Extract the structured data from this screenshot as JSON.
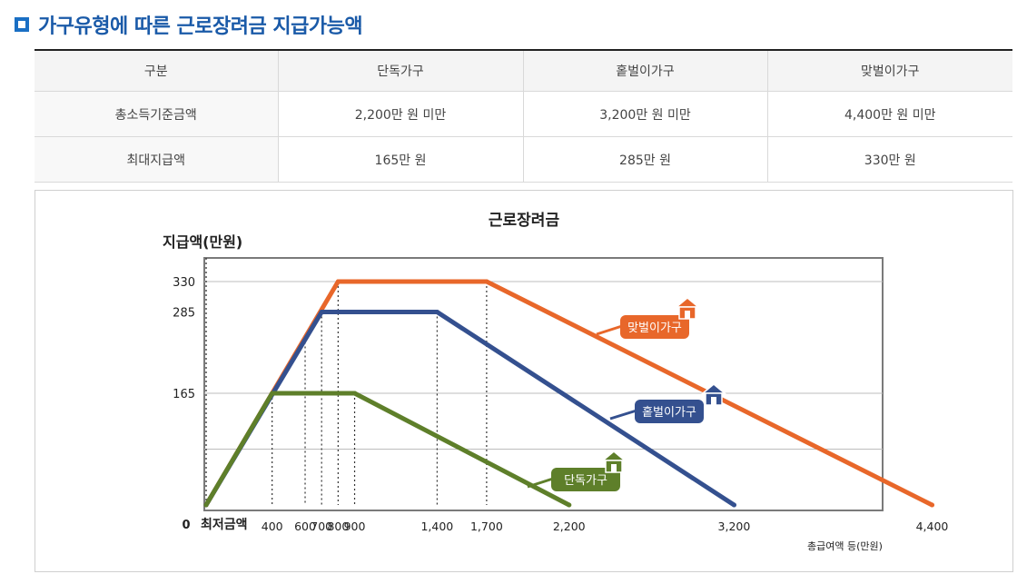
{
  "header": {
    "title": "가구유형에 따른 근로장려금 지급가능액"
  },
  "table": {
    "columns": [
      "구분",
      "단독가구",
      "홑벌이가구",
      "맞벌이가구"
    ],
    "rows": [
      [
        "총소득기준금액",
        "2,200만 원 미만",
        "3,200만 원 미만",
        "4,400만 원 미만"
      ],
      [
        "최대지급액",
        "165만 원",
        "285만 원",
        "330만 원"
      ]
    ]
  },
  "chart_data": {
    "type": "line",
    "title": "근로장려금",
    "ylabel": "지급액(만원)",
    "xlabel": "총급여액 등(만원)",
    "origin_label": "0",
    "min_label": "최저금액",
    "xlim": [
      0,
      4400
    ],
    "ylim": [
      0,
      330
    ],
    "x_ticks": [
      400,
      600,
      700,
      800,
      900,
      1400,
      1700,
      2200,
      3200,
      4400
    ],
    "x_tick_labels": [
      "400",
      "600",
      "700",
      "800",
      "900",
      "1,400",
      "1,700",
      "2,200",
      "3,200",
      "4,400"
    ],
    "y_ticks": [
      165,
      285,
      330
    ],
    "y_tick_labels": [
      "165",
      "285",
      "330"
    ],
    "grid": true,
    "series": [
      {
        "name": "맞벌이가구",
        "color": "#e8672a",
        "icon": "house-icon",
        "points": [
          [
            0,
            0
          ],
          [
            800,
            330
          ],
          [
            1700,
            330
          ],
          [
            4400,
            0
          ]
        ]
      },
      {
        "name": "홑벌이가구",
        "color": "#34508f",
        "icon": "house-icon",
        "points": [
          [
            0,
            0
          ],
          [
            700,
            285
          ],
          [
            1400,
            285
          ],
          [
            3200,
            0
          ]
        ]
      },
      {
        "name": "단독가구",
        "color": "#5e7f2a",
        "icon": "house-icon",
        "points": [
          [
            0,
            0
          ],
          [
            400,
            165
          ],
          [
            900,
            165
          ],
          [
            2200,
            0
          ]
        ]
      }
    ]
  }
}
